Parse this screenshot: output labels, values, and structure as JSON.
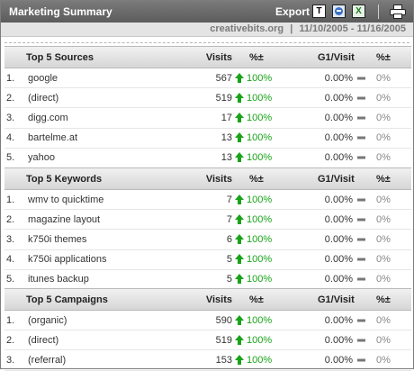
{
  "header": {
    "title": "Marketing Summary",
    "export_label": "Export",
    "export_icons": [
      "pdf-icon",
      "xml-icon",
      "csv-icon"
    ],
    "print_icon": "printer-icon"
  },
  "subheader": {
    "site": "creativebits.org",
    "separator": "|",
    "date_range": "11/10/2005 - 11/16/2005"
  },
  "colors": {
    "up": "#1aa31a",
    "header_bg": "#6b6b6b",
    "neutral": "#777777"
  },
  "sections": [
    {
      "title": "Top 5 Sources",
      "headers": {
        "visits": "Visits",
        "pct": "%±",
        "g1": "G1/Visit",
        "pct2": "%±"
      },
      "rows": [
        {
          "idx": "1.",
          "name": "google",
          "visits": "567",
          "pct": "100%",
          "g1": "0.00%",
          "pct2": "0%"
        },
        {
          "idx": "2.",
          "name": "(direct)",
          "visits": "519",
          "pct": "100%",
          "g1": "0.00%",
          "pct2": "0%"
        },
        {
          "idx": "3.",
          "name": "digg.com",
          "visits": "17",
          "pct": "100%",
          "g1": "0.00%",
          "pct2": "0%"
        },
        {
          "idx": "4.",
          "name": "bartelme.at",
          "visits": "13",
          "pct": "100%",
          "g1": "0.00%",
          "pct2": "0%"
        },
        {
          "idx": "5.",
          "name": "yahoo",
          "visits": "13",
          "pct": "100%",
          "g1": "0.00%",
          "pct2": "0%"
        }
      ]
    },
    {
      "title": "Top 5 Keywords",
      "headers": {
        "visits": "Visits",
        "pct": "%±",
        "g1": "G1/Visit",
        "pct2": "%±"
      },
      "rows": [
        {
          "idx": "1.",
          "name": "wmv to quicktime",
          "visits": "7",
          "pct": "100%",
          "g1": "0.00%",
          "pct2": "0%"
        },
        {
          "idx": "2.",
          "name": "magazine layout",
          "visits": "7",
          "pct": "100%",
          "g1": "0.00%",
          "pct2": "0%"
        },
        {
          "idx": "3.",
          "name": "k750i themes",
          "visits": "6",
          "pct": "100%",
          "g1": "0.00%",
          "pct2": "0%"
        },
        {
          "idx": "4.",
          "name": "k750i applications",
          "visits": "5",
          "pct": "100%",
          "g1": "0.00%",
          "pct2": "0%"
        },
        {
          "idx": "5.",
          "name": "itunes backup",
          "visits": "5",
          "pct": "100%",
          "g1": "0.00%",
          "pct2": "0%"
        }
      ]
    },
    {
      "title": "Top 5 Campaigns",
      "headers": {
        "visits": "Visits",
        "pct": "%±",
        "g1": "G1/Visit",
        "pct2": "%±"
      },
      "rows": [
        {
          "idx": "1.",
          "name": "(organic)",
          "visits": "590",
          "pct": "100%",
          "g1": "0.00%",
          "pct2": "0%"
        },
        {
          "idx": "2.",
          "name": "(direct)",
          "visits": "519",
          "pct": "100%",
          "g1": "0.00%",
          "pct2": "0%"
        },
        {
          "idx": "3.",
          "name": "(referral)",
          "visits": "153",
          "pct": "100%",
          "g1": "0.00%",
          "pct2": "0%"
        }
      ]
    }
  ]
}
